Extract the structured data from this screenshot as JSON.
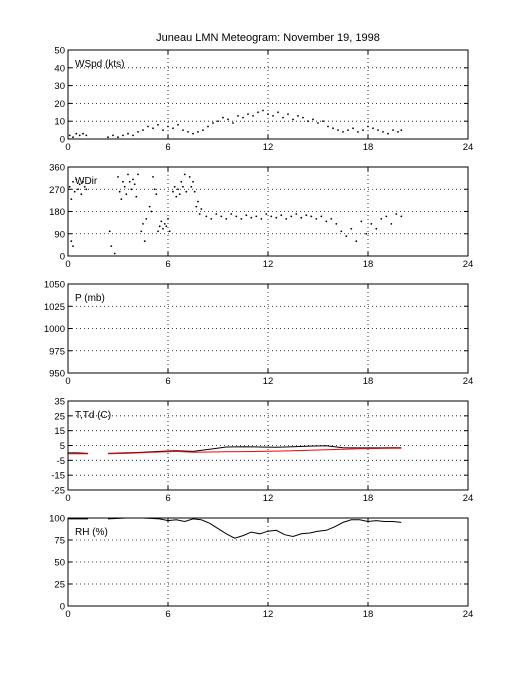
{
  "title": "Juneau LMN Meteogram:  November 19, 1998",
  "chart_data": [
    {
      "id": "wspd",
      "type": "scatter",
      "label": "WSpd (kts)",
      "xlim": [
        0,
        24
      ],
      "xticks": [
        0,
        6,
        12,
        18,
        24
      ],
      "ylim": [
        0,
        50
      ],
      "yticks": [
        0,
        10,
        20,
        30,
        40,
        50
      ],
      "grid": true,
      "series": [
        {
          "color": "#000000",
          "points": [
            [
              0.1,
              2
            ],
            [
              0.3,
              1
            ],
            [
              0.5,
              3
            ],
            [
              0.7,
              2
            ],
            [
              0.9,
              3
            ],
            [
              1.1,
              2
            ],
            [
              2.4,
              1
            ],
            [
              2.7,
              2
            ],
            [
              3.0,
              1
            ],
            [
              3.3,
              2
            ],
            [
              3.6,
              3
            ],
            [
              3.9,
              2
            ],
            [
              4.2,
              4
            ],
            [
              4.5,
              5
            ],
            [
              4.8,
              7
            ],
            [
              5.1,
              6
            ],
            [
              5.4,
              8
            ],
            [
              5.7,
              5
            ],
            [
              6.0,
              7
            ],
            [
              6.3,
              6
            ],
            [
              6.6,
              8
            ],
            [
              6.9,
              5
            ],
            [
              7.2,
              4
            ],
            [
              7.5,
              3
            ],
            [
              7.8,
              4
            ],
            [
              8.1,
              5
            ],
            [
              8.4,
              7
            ],
            [
              8.7,
              9
            ],
            [
              9.0,
              10
            ],
            [
              9.3,
              12
            ],
            [
              9.6,
              11
            ],
            [
              9.9,
              9
            ],
            [
              10.2,
              13
            ],
            [
              10.5,
              12
            ],
            [
              10.8,
              14
            ],
            [
              11.1,
              13
            ],
            [
              11.4,
              15
            ],
            [
              11.7,
              16
            ],
            [
              12.0,
              14
            ],
            [
              12.3,
              13
            ],
            [
              12.6,
              15
            ],
            [
              12.9,
              12
            ],
            [
              13.2,
              14
            ],
            [
              13.5,
              11
            ],
            [
              13.8,
              13
            ],
            [
              14.1,
              12
            ],
            [
              14.4,
              10
            ],
            [
              14.7,
              11
            ],
            [
              15.0,
              9
            ],
            [
              15.3,
              10
            ],
            [
              15.6,
              7
            ],
            [
              15.9,
              6
            ],
            [
              16.2,
              5
            ],
            [
              16.5,
              4
            ],
            [
              16.8,
              5
            ],
            [
              17.1,
              6
            ],
            [
              17.4,
              4
            ],
            [
              17.7,
              5
            ],
            [
              18.0,
              7
            ],
            [
              18.3,
              6
            ],
            [
              18.6,
              5
            ],
            [
              18.9,
              4
            ],
            [
              19.2,
              3
            ],
            [
              19.5,
              5
            ],
            [
              19.8,
              4
            ],
            [
              20.0,
              5
            ]
          ]
        }
      ]
    },
    {
      "id": "wdir",
      "type": "scatter",
      "label": "WDir",
      "xlim": [
        0,
        24
      ],
      "xticks": [
        0,
        6,
        12,
        18,
        24
      ],
      "ylim": [
        0,
        360
      ],
      "yticks": [
        0,
        90,
        180,
        270,
        360
      ],
      "grid": true,
      "series": [
        {
          "color": "#000000",
          "points": [
            [
              0.1,
              280
            ],
            [
              0.2,
              230
            ],
            [
              0.3,
              300
            ],
            [
              0.4,
              260
            ],
            [
              0.5,
              310
            ],
            [
              0.6,
              270
            ],
            [
              0.7,
              290
            ],
            [
              0.8,
              250
            ],
            [
              0.9,
              300
            ],
            [
              1.0,
              280
            ],
            [
              1.1,
              270
            ],
            [
              0.2,
              60
            ],
            [
              0.3,
              40
            ],
            [
              2.6,
              40
            ],
            [
              2.8,
              10
            ],
            [
              2.5,
              100
            ],
            [
              3.0,
              320
            ],
            [
              3.1,
              260
            ],
            [
              3.2,
              230
            ],
            [
              3.3,
              300
            ],
            [
              3.4,
              280
            ],
            [
              3.5,
              250
            ],
            [
              3.6,
              330
            ],
            [
              3.7,
              300
            ],
            [
              3.8,
              270
            ],
            [
              3.9,
              310
            ],
            [
              4.0,
              290
            ],
            [
              4.1,
              240
            ],
            [
              4.2,
              330
            ],
            [
              4.4,
              100
            ],
            [
              4.5,
              130
            ],
            [
              4.6,
              60
            ],
            [
              4.7,
              150
            ],
            [
              4.9,
              200
            ],
            [
              5.0,
              180
            ],
            [
              5.1,
              320
            ],
            [
              5.2,
              270
            ],
            [
              5.3,
              250
            ],
            [
              5.4,
              100
            ],
            [
              5.5,
              120
            ],
            [
              5.6,
              140
            ],
            [
              5.7,
              110
            ],
            [
              5.8,
              130
            ],
            [
              5.9,
              120
            ],
            [
              6.0,
              150
            ],
            [
              6.1,
              100
            ],
            [
              6.3,
              260
            ],
            [
              6.4,
              280
            ],
            [
              6.5,
              240
            ],
            [
              6.6,
              270
            ],
            [
              6.7,
              250
            ],
            [
              6.8,
              300
            ],
            [
              6.9,
              280
            ],
            [
              7.0,
              330
            ],
            [
              7.1,
              260
            ],
            [
              7.3,
              320
            ],
            [
              7.4,
              280
            ],
            [
              7.5,
              300
            ],
            [
              7.6,
              260
            ],
            [
              7.7,
              200
            ],
            [
              7.8,
              220
            ],
            [
              7.9,
              170
            ],
            [
              8.0,
              190
            ],
            [
              8.3,
              160
            ],
            [
              8.6,
              150
            ],
            [
              8.9,
              170
            ],
            [
              9.2,
              160
            ],
            [
              9.5,
              150
            ],
            [
              9.8,
              170
            ],
            [
              10.1,
              160
            ],
            [
              10.4,
              150
            ],
            [
              10.7,
              165
            ],
            [
              11.0,
              155
            ],
            [
              11.3,
              160
            ],
            [
              11.6,
              150
            ],
            [
              11.9,
              170
            ],
            [
              12.2,
              160
            ],
            [
              12.5,
              155
            ],
            [
              12.8,
              165
            ],
            [
              13.1,
              150
            ],
            [
              13.4,
              160
            ],
            [
              13.7,
              170
            ],
            [
              14.0,
              155
            ],
            [
              14.3,
              165
            ],
            [
              14.6,
              160
            ],
            [
              14.9,
              150
            ],
            [
              15.2,
              160
            ],
            [
              15.5,
              140
            ],
            [
              15.8,
              150
            ],
            [
              16.1,
              130
            ],
            [
              16.4,
              100
            ],
            [
              16.7,
              80
            ],
            [
              17.0,
              110
            ],
            [
              17.3,
              60
            ],
            [
              17.6,
              140
            ],
            [
              17.9,
              90
            ],
            [
              18.2,
              130
            ],
            [
              18.5,
              110
            ],
            [
              18.8,
              150
            ],
            [
              19.1,
              160
            ],
            [
              19.4,
              130
            ],
            [
              19.7,
              170
            ],
            [
              20.0,
              160
            ]
          ]
        }
      ]
    },
    {
      "id": "p",
      "type": "line",
      "label": "P (mb)",
      "xlim": [
        0,
        24
      ],
      "xticks": [
        0,
        6,
        12,
        18,
        24
      ],
      "ylim": [
        950,
        1050
      ],
      "yticks": [
        950,
        975,
        1000,
        1025,
        1050
      ],
      "grid": true,
      "series": []
    },
    {
      "id": "ttd",
      "type": "line",
      "label": "T,Td (C)",
      "xlim": [
        0,
        24
      ],
      "xticks": [
        0,
        6,
        12,
        18,
        24
      ],
      "ylim": [
        -25,
        35
      ],
      "yticks": [
        -25,
        -15,
        -5,
        5,
        15,
        25,
        35
      ],
      "grid": true,
      "series": [
        {
          "name": "T",
          "color": "#000000",
          "segments": [
            [
              [
                0,
                0
              ],
              [
                0.5,
                0
              ],
              [
                1.2,
                -0.3
              ]
            ],
            [
              [
                2.4,
                -0.3
              ],
              [
                3.5,
                0
              ],
              [
                4.5,
                0.5
              ],
              [
                5.5,
                1
              ],
              [
                6.5,
                1.5
              ],
              [
                7.5,
                1
              ],
              [
                8.5,
                2.5
              ],
              [
                9.5,
                4
              ],
              [
                10.5,
                4.2
              ],
              [
                11.5,
                4
              ],
              [
                12.5,
                3.8
              ],
              [
                13.5,
                4.2
              ],
              [
                14.5,
                4.6
              ],
              [
                15.5,
                4.8
              ],
              [
                16.5,
                3.5
              ],
              [
                17.5,
                3.4
              ],
              [
                18.5,
                3.4
              ],
              [
                19.5,
                3.5
              ],
              [
                20,
                3.5
              ]
            ]
          ]
        },
        {
          "name": "Td",
          "color": "#ff0000",
          "segments": [
            [
              [
                0,
                -0.5
              ],
              [
                0.5,
                -0.6
              ],
              [
                1.2,
                -0.6
              ]
            ],
            [
              [
                2.4,
                -0.6
              ],
              [
                3.5,
                -0.3
              ],
              [
                4.5,
                0.2
              ],
              [
                5.5,
                0.6
              ],
              [
                6.5,
                1
              ],
              [
                7.5,
                0.5
              ],
              [
                8.5,
                0.6
              ],
              [
                9.5,
                0.8
              ],
              [
                10.5,
                0.9
              ],
              [
                11.5,
                1
              ],
              [
                12.5,
                1.2
              ],
              [
                13.5,
                1.5
              ],
              [
                14.5,
                1.8
              ],
              [
                15.5,
                2.2
              ],
              [
                16.5,
                2.5
              ],
              [
                17.5,
                2.8
              ],
              [
                18.5,
                3
              ],
              [
                19.5,
                3.2
              ],
              [
                20,
                3.2
              ]
            ]
          ]
        }
      ]
    },
    {
      "id": "rh",
      "type": "line",
      "label": "RH (%)",
      "xlim": [
        0,
        24
      ],
      "xticks": [
        0,
        6,
        12,
        18,
        24
      ],
      "ylim": [
        0,
        100
      ],
      "yticks": [
        0,
        25,
        50,
        75,
        100
      ],
      "grid": true,
      "series": [
        {
          "color": "#000000",
          "segments": [
            [
              [
                0,
                99
              ],
              [
                0.6,
                99
              ],
              [
                1.2,
                99
              ]
            ],
            [
              [
                2.4,
                99
              ],
              [
                3.5,
                100
              ],
              [
                4.5,
                100
              ],
              [
                5.5,
                99
              ],
              [
                6.0,
                97
              ],
              [
                6.5,
                98
              ],
              [
                7.0,
                96
              ],
              [
                7.5,
                99
              ],
              [
                8.0,
                98
              ],
              [
                8.5,
                94
              ],
              [
                9.0,
                88
              ],
              [
                9.5,
                82
              ],
              [
                10.0,
                77
              ],
              [
                10.5,
                80
              ],
              [
                11.0,
                84
              ],
              [
                11.5,
                82
              ],
              [
                12.0,
                85
              ],
              [
                12.5,
                86
              ],
              [
                13.0,
                81
              ],
              [
                13.5,
                79
              ],
              [
                14.0,
                82
              ],
              [
                14.5,
                83
              ],
              [
                15.0,
                85
              ],
              [
                15.5,
                86
              ],
              [
                16.0,
                90
              ],
              [
                16.5,
                95
              ],
              [
                17.0,
                98
              ],
              [
                17.5,
                98
              ],
              [
                18.0,
                96
              ],
              [
                18.5,
                97
              ],
              [
                19.0,
                96
              ],
              [
                19.5,
                96
              ],
              [
                20.0,
                95
              ]
            ]
          ]
        }
      ]
    }
  ]
}
